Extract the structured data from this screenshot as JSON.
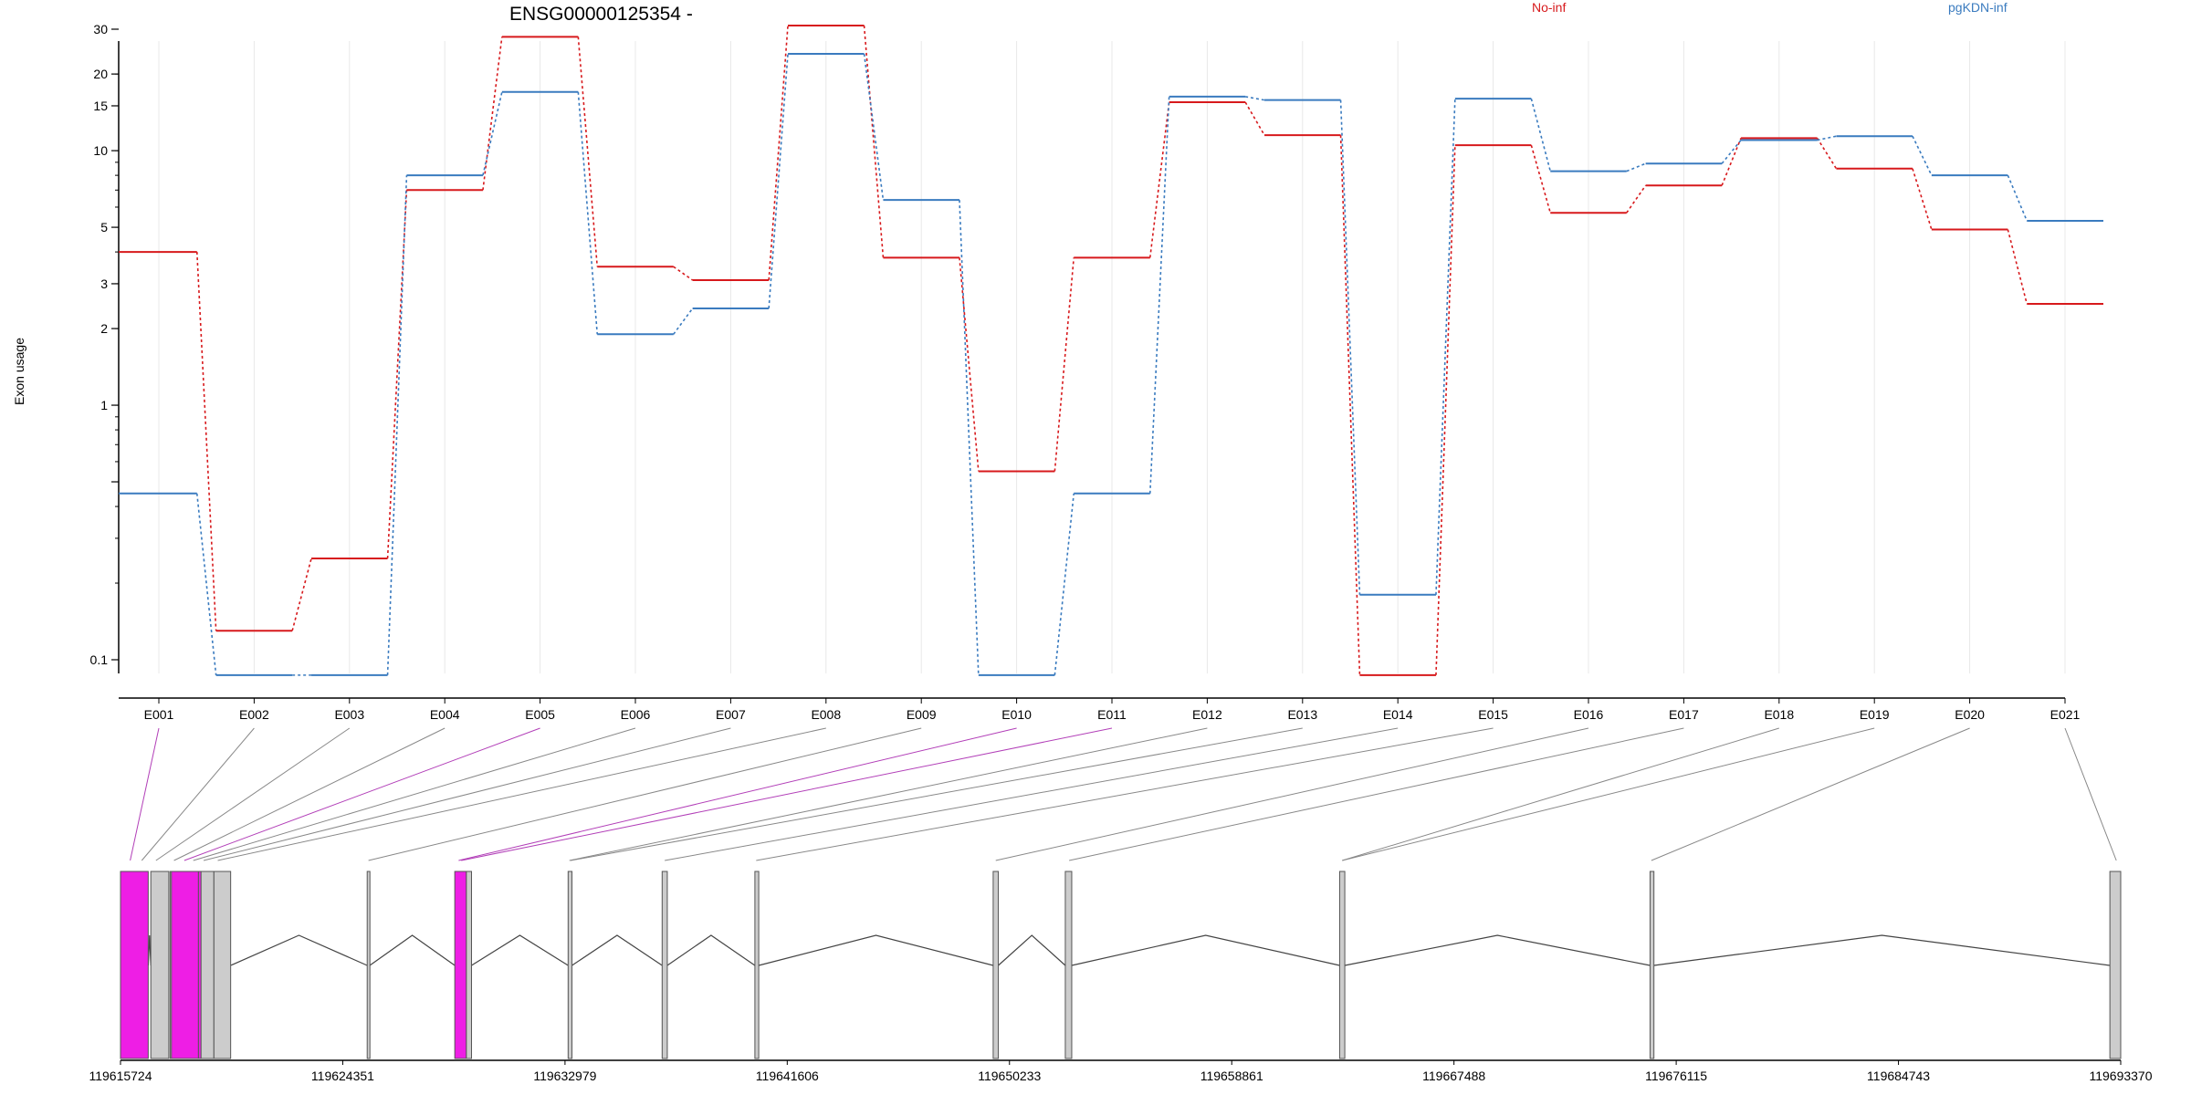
{
  "chart_data": {
    "type": "line",
    "title": "ENSG00000125354 -",
    "ylabel": "Exon usage",
    "xlabel": "",
    "y_scale": "log",
    "ylim": [
      0.08,
      35
    ],
    "y_ticks": [
      0.1,
      0.5,
      1,
      2,
      3,
      5,
      10,
      15,
      20,
      30
    ],
    "y_tick_labels": [
      "0.1",
      "",
      "1",
      "2",
      "3",
      "5",
      "10",
      "15",
      "20",
      "30"
    ],
    "categories": [
      "E001",
      "E002",
      "E003",
      "E004",
      "E005",
      "E006",
      "E007",
      "E008",
      "E009",
      "E010",
      "E011",
      "E012",
      "E013",
      "E014",
      "E015",
      "E016",
      "E017",
      "E018",
      "E019",
      "E020",
      "E021"
    ],
    "legend_position": "top-right",
    "series": [
      {
        "name": "No-inf",
        "color": "#d7191c",
        "values": [
          4.0,
          0.13,
          0.25,
          7.0,
          28.0,
          3.5,
          3.1,
          31.0,
          3.8,
          0.55,
          3.8,
          15.5,
          11.5,
          0.087,
          10.5,
          5.7,
          7.3,
          11.2,
          8.5,
          4.9,
          2.5
        ]
      },
      {
        "name": "pgKDN-inf",
        "color": "#3a7bbf",
        "values": [
          0.45,
          0.087,
          0.087,
          8.0,
          17.0,
          1.9,
          2.4,
          24.0,
          6.4,
          0.087,
          0.45,
          16.3,
          15.8,
          0.18,
          16.0,
          8.3,
          8.9,
          11.0,
          11.4,
          8.0,
          5.3
        ]
      }
    ]
  },
  "gene_model": {
    "coordinate_labels": [
      "119615724",
      "119624351",
      "119632979",
      "119641606",
      "119650233",
      "119658861",
      "119667488",
      "119676115",
      "119684743",
      "119693370"
    ],
    "coordinate_values": [
      119615724,
      119624351,
      119632979,
      119641606,
      119650233,
      119658861,
      119667488,
      119676115,
      119684743,
      119693370
    ],
    "highlight_color": "#ee1ee5",
    "exon_color": "#cccccc",
    "exons": [
      {
        "id": "E001",
        "start": 119615724,
        "end": 119616800,
        "highlighted": true
      },
      {
        "id": "E002",
        "start": 119616900,
        "end": 119617600,
        "highlighted": false
      },
      {
        "id": "E003",
        "start": 119617650,
        "end": 119617700,
        "highlighted": false
      },
      {
        "id": "E004",
        "start": 119617700,
        "end": 119618750,
        "highlighted": true
      },
      {
        "id": "E005",
        "start": 119618750,
        "end": 119618850,
        "highlighted": true
      },
      {
        "id": "E006",
        "start": 119618850,
        "end": 119619350,
        "highlighted": false
      },
      {
        "id": "E007",
        "start": 119619350,
        "end": 119620000,
        "highlighted": false
      },
      {
        "id": "E008",
        "start": 119625300,
        "end": 119625400,
        "highlighted": false
      },
      {
        "id": "E009",
        "start": 119628700,
        "end": 119629150,
        "highlighted": true
      },
      {
        "id": "E010",
        "start": 119629150,
        "end": 119629350,
        "highlighted": false
      },
      {
        "id": "E011",
        "start": 119633100,
        "end": 119633250,
        "highlighted": false
      },
      {
        "id": "E012",
        "start": 119636750,
        "end": 119636950,
        "highlighted": false
      },
      {
        "id": "E013",
        "start": 119640350,
        "end": 119640500,
        "highlighted": false
      },
      {
        "id": "E014",
        "start": 119649600,
        "end": 119649800,
        "highlighted": false
      },
      {
        "id": "E015",
        "start": 119652400,
        "end": 119652650,
        "highlighted": false
      },
      {
        "id": "E016",
        "start": 119663050,
        "end": 119663250,
        "highlighted": false
      },
      {
        "id": "E017",
        "start": 119675100,
        "end": 119675250,
        "highlighted": false
      },
      {
        "id": "E018",
        "start": 119692950,
        "end": 119693370,
        "highlighted": false
      }
    ],
    "links": [
      {
        "exon": "E001",
        "target": 119616100,
        "highlighted": true
      },
      {
        "exon": "E002",
        "target": 119616550,
        "highlighted": false
      },
      {
        "exon": "E003",
        "target": 119617100,
        "highlighted": false
      },
      {
        "exon": "E004",
        "target": 119617800,
        "highlighted": false
      },
      {
        "exon": "E005",
        "target": 119618200,
        "highlighted": true
      },
      {
        "exon": "E006",
        "target": 119618550,
        "highlighted": false
      },
      {
        "exon": "E007",
        "target": 119618950,
        "highlighted": false
      },
      {
        "exon": "E008",
        "target": 119619500,
        "highlighted": false
      },
      {
        "exon": "E009",
        "target": 119625350,
        "highlighted": false
      },
      {
        "exon": "E010",
        "target": 119628850,
        "highlighted": true
      },
      {
        "exon": "E011",
        "target": 119628950,
        "highlighted": true
      },
      {
        "exon": "E012",
        "target": 119633150,
        "highlighted": false
      },
      {
        "exon": "E013",
        "target": 119633200,
        "highlighted": false
      },
      {
        "exon": "E014",
        "target": 119636850,
        "highlighted": false
      },
      {
        "exon": "E015",
        "target": 119640400,
        "highlighted": false
      },
      {
        "exon": "E016",
        "target": 119649700,
        "highlighted": false
      },
      {
        "exon": "E017",
        "target": 119652550,
        "highlighted": false
      },
      {
        "exon": "E018",
        "target": 119663150,
        "highlighted": false
      },
      {
        "exon": "E019",
        "target": 119663150,
        "highlighted": false
      },
      {
        "exon": "E020",
        "target": 119675150,
        "highlighted": false
      },
      {
        "exon": "E021",
        "target": 119693200,
        "highlighted": false
      }
    ]
  }
}
